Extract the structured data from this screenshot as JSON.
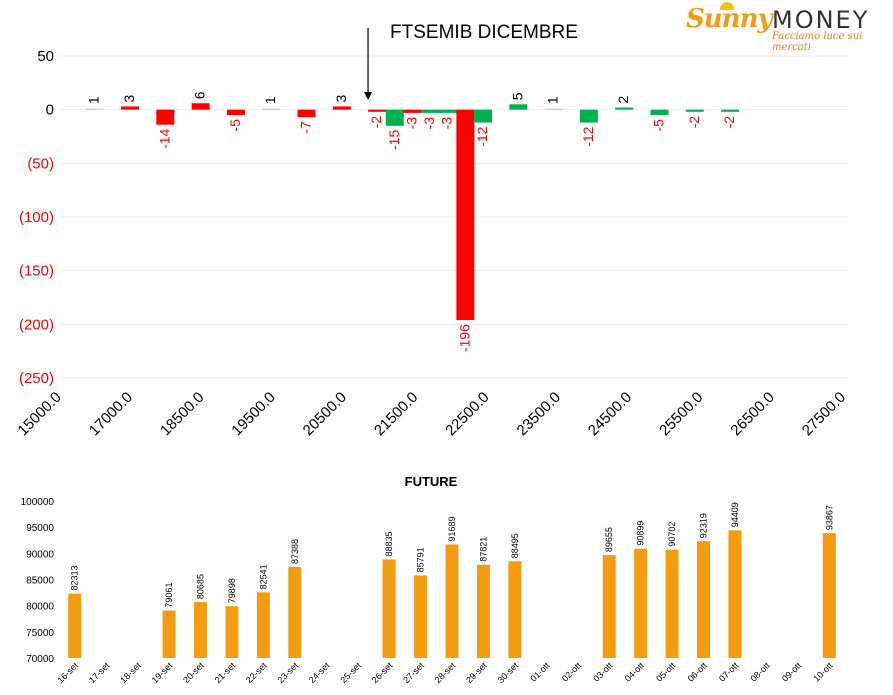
{
  "logo": {
    "brand_a": "Sunny",
    "brand_b": "MONEY",
    "tagline": "Facciamo luce sui mercati",
    "colors": {
      "brand_a": "#f39c12",
      "brand_b": "#333333",
      "tagline": "#e67e22"
    }
  },
  "chart_data": [
    {
      "type": "bar",
      "title": "FTSEMIB DICEMBRE",
      "xlabel": "",
      "ylabel": "",
      "xlim": [
        15000,
        27500
      ],
      "ylim": [
        -250,
        50
      ],
      "x_ticks": [
        "15000.0",
        "17000.0",
        "18500.0",
        "19500.0",
        "20500.0",
        "21500.0",
        "22500.0",
        "23500.0",
        "24500.0",
        "25500.0",
        "26500.0",
        "27500.0"
      ],
      "y_ticks": [
        {
          "value": 50,
          "label": "50"
        },
        {
          "value": 0,
          "label": "0"
        },
        {
          "value": -50,
          "label": "(50)"
        },
        {
          "value": -100,
          "label": "(100)"
        },
        {
          "value": -150,
          "label": "(150)"
        },
        {
          "value": -200,
          "label": "(200)"
        },
        {
          "value": -250,
          "label": "(250)"
        }
      ],
      "annotation": {
        "label": "arrow",
        "slot": 8.5
      },
      "bars": [
        {
          "slot": 0.7,
          "value": 1,
          "label": "1",
          "color": "#d0d0d0"
        },
        {
          "slot": 1.7,
          "value": 3,
          "label": "3",
          "color": "#ff0000"
        },
        {
          "slot": 2.7,
          "value": -14,
          "label": "-14",
          "color": "#ff0000"
        },
        {
          "slot": 3.7,
          "value": 6,
          "label": "6",
          "color": "#ff0000"
        },
        {
          "slot": 4.7,
          "value": -5,
          "label": "-5",
          "color": "#ff0000"
        },
        {
          "slot": 5.7,
          "value": 1,
          "label": "1",
          "color": "#d0d0d0"
        },
        {
          "slot": 6.7,
          "value": -7,
          "label": "-7",
          "color": "#ff0000"
        },
        {
          "slot": 7.7,
          "value": 3,
          "label": "3",
          "color": "#ff0000"
        },
        {
          "slot": 8.7,
          "value": -2,
          "label": "-2",
          "color": "#ff0000"
        },
        {
          "slot": 9.2,
          "value": -15,
          "label": "-15",
          "color": "#00b050"
        },
        {
          "slot": 9.7,
          "value": -3,
          "label": "-3",
          "color": "#ff0000"
        },
        {
          "slot": 10.2,
          "value": -3,
          "label": "-3",
          "color": "#00b050"
        },
        {
          "slot": 10.7,
          "value": -3,
          "label": "-3",
          "color": "#00b050"
        },
        {
          "slot": 11.2,
          "value": -196,
          "label": "-196",
          "color": "#ff0000"
        },
        {
          "slot": 11.7,
          "value": -12,
          "label": "-12",
          "color": "#00b050"
        },
        {
          "slot": 12.7,
          "value": 5,
          "label": "5",
          "color": "#00b050"
        },
        {
          "slot": 13.7,
          "value": 1,
          "label": "1",
          "color": "#d0d0d0"
        },
        {
          "slot": 14.7,
          "value": -12,
          "label": "-12",
          "color": "#00b050"
        },
        {
          "slot": 15.7,
          "value": 2,
          "label": "2",
          "color": "#00b050"
        },
        {
          "slot": 16.7,
          "value": -5,
          "label": "-5",
          "color": "#00b050"
        },
        {
          "slot": 17.7,
          "value": -2,
          "label": "-2",
          "color": "#00b050"
        },
        {
          "slot": 18.7,
          "value": -2,
          "label": "-2",
          "color": "#00b050"
        }
      ],
      "colors": {
        "positive_label": "#000000",
        "negative_label": "#ff0000",
        "grid": "#eeeeee"
      }
    },
    {
      "type": "bar",
      "title": "FUTURE",
      "xlabel": "",
      "ylabel": "",
      "ylim": [
        70000,
        100000
      ],
      "y_ticks": [
        70000,
        75000,
        80000,
        85000,
        90000,
        95000,
        100000
      ],
      "categories": [
        "16-set",
        "17-set",
        "18-set",
        "19-set",
        "20-set",
        "21-set",
        "22-set",
        "23-set",
        "24-set",
        "25-set",
        "26-set",
        "27-set",
        "28-set",
        "29-set",
        "30-set",
        "01-ott",
        "02-ott",
        "03-ott",
        "04-ott",
        "05-ott",
        "06-ott",
        "07-ott",
        "08-ott",
        "09-ott",
        "10-ott"
      ],
      "values": [
        82313,
        null,
        null,
        79061,
        80685,
        79898,
        82541,
        87388,
        null,
        null,
        88835,
        85791,
        91689,
        87821,
        88495,
        null,
        null,
        89655,
        90899,
        90702,
        92319,
        94409,
        null,
        null,
        93867
      ],
      "colors": {
        "bar": "#f39c12"
      }
    }
  ]
}
